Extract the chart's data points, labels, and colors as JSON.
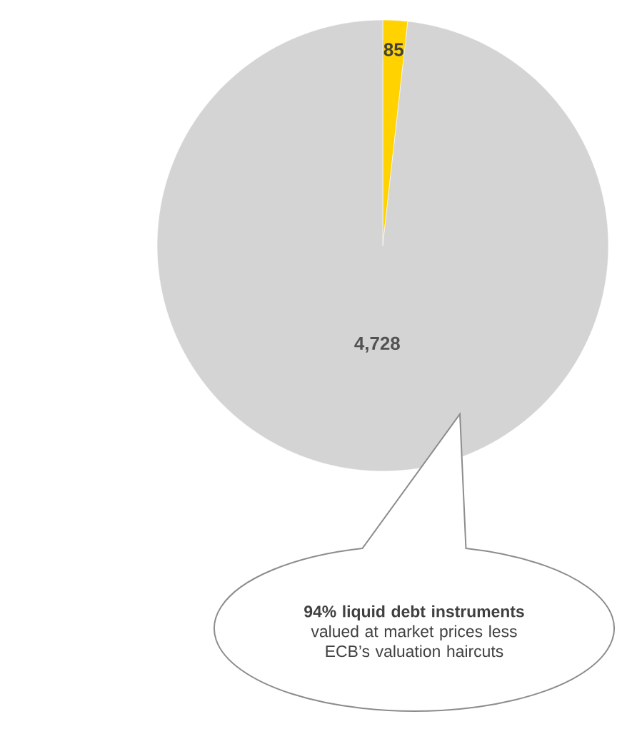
{
  "chart_data": {
    "type": "pie",
    "categories": [
      null,
      null
    ],
    "values": [
      85,
      4728
    ],
    "colors": [
      "#ffd200",
      "#d4d4d4"
    ],
    "value_labels": [
      "85",
      "4,728"
    ],
    "annotations": [
      "**94% liquid debt instruments** valued at market prices less ECB’s valuation haircuts"
    ]
  }
}
